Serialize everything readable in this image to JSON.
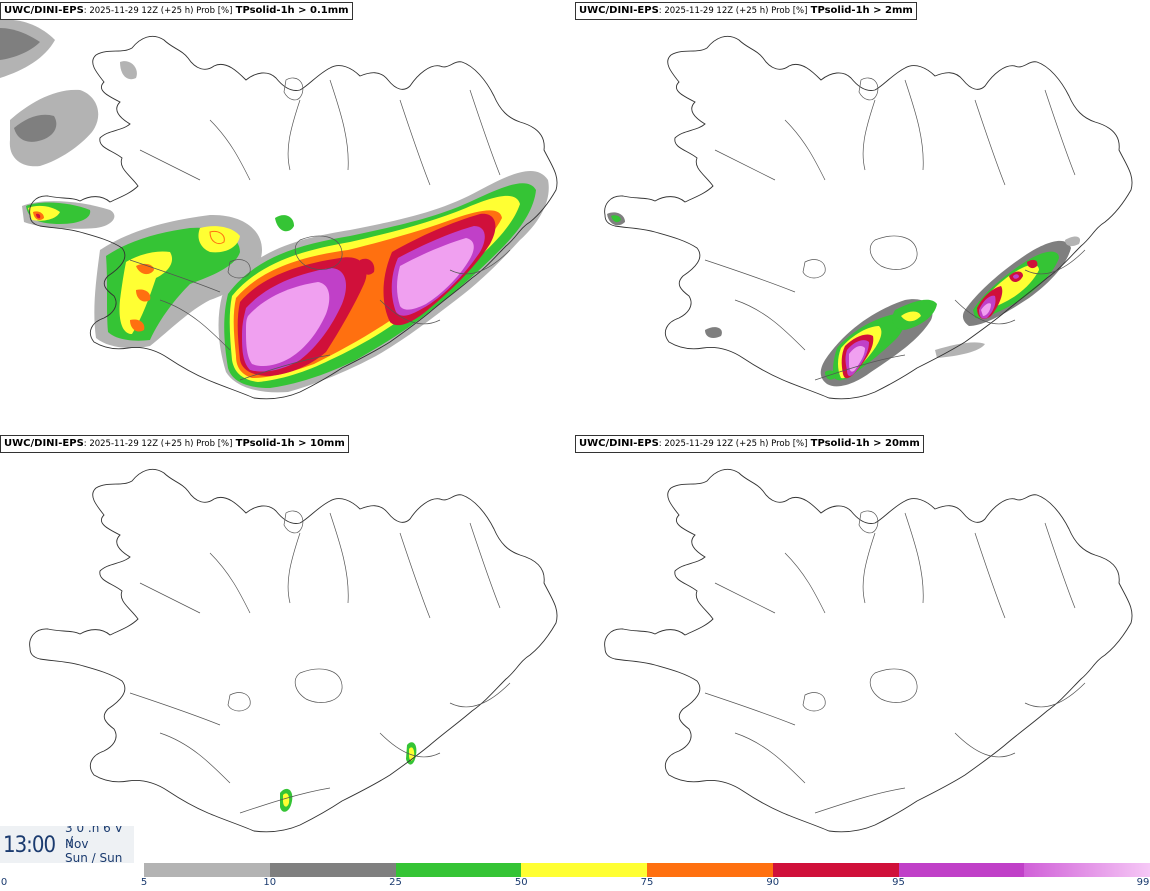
{
  "panels": [
    {
      "model": "UWC/DINI-EPS",
      "meta": ": 2025-11-29 12Z (+25 h) Prob [%]",
      "param": "TPsolid-1h > 0.1mm"
    },
    {
      "model": "UWC/DINI-EPS",
      "meta": ": 2025-11-29 12Z (+25 h) Prob [%]",
      "param": "TPsolid-1h > 2mm"
    },
    {
      "model": "UWC/DINI-EPS",
      "meta": ": 2025-11-29 12Z (+25 h) Prob [%]",
      "param": "TPsolid-1h > 10mm"
    },
    {
      "model": "UWC/DINI-EPS",
      "meta": ": 2025-11-29 12Z (+25 h) Prob [%]",
      "param": "TPsolid-1h > 20mm"
    }
  ],
  "clock": {
    "time": "13:00",
    "line1": "3 0 .h 6 V ./",
    "line2": "Nov",
    "line3": "Sun / Sun"
  },
  "legend": {
    "colors": [
      "#b3b3b3",
      "#7f7f7f",
      "#35c435",
      "#ffff33",
      "#ff7010",
      "#d0103a",
      "#c040c8",
      "#f0a0f0"
    ],
    "ticks": [
      "0",
      "5",
      "10",
      "25",
      "50",
      "75",
      "90",
      "95",
      "99"
    ]
  }
}
